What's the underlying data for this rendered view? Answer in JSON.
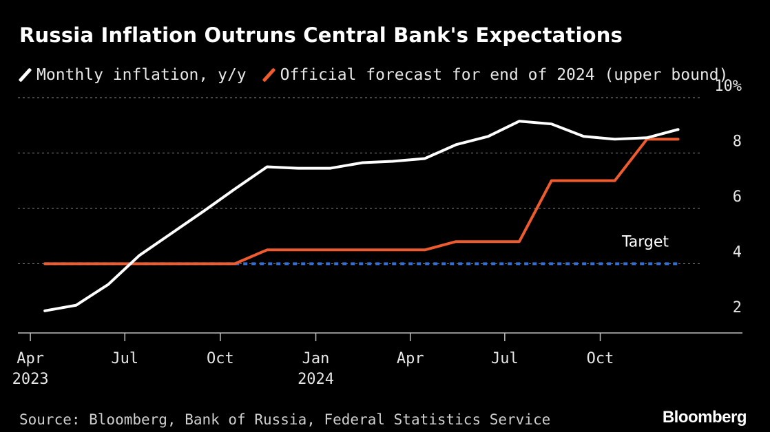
{
  "title": "Russia Inflation Outruns Central Bank's Expectations",
  "legend": [
    {
      "label": "Monthly inflation, y/y",
      "color": "#ffffff"
    },
    {
      "label": "Official forecast for end of 2024 (upper bound)",
      "color": "#ee5b2e"
    }
  ],
  "source": "Source: Bloomberg, Bank of Russia, Federal Statistics Service",
  "brand": "Bloomberg",
  "chart_data": {
    "type": "line",
    "x": [
      "2023-04",
      "2023-05",
      "2023-06",
      "2023-07",
      "2023-08",
      "2023-09",
      "2023-10",
      "2023-11",
      "2023-12",
      "2024-01",
      "2024-02",
      "2024-03",
      "2024-04",
      "2024-05",
      "2024-06",
      "2024-07",
      "2024-08",
      "2024-09",
      "2024-10",
      "2024-11",
      "2024-12"
    ],
    "series": [
      {
        "name": "Monthly inflation, y/y",
        "color": "#ffffff",
        "step": false,
        "values": [
          2.3,
          2.5,
          3.25,
          4.3,
          5.1,
          5.9,
          6.7,
          7.5,
          7.45,
          7.45,
          7.65,
          7.7,
          7.8,
          8.3,
          8.6,
          9.15,
          9.05,
          8.6,
          8.5,
          8.55,
          8.85
        ]
      },
      {
        "name": "Official forecast for end of 2024 (upper bound)",
        "color": "#ee5b2e",
        "step": true,
        "values": [
          4.0,
          4.0,
          4.0,
          4.0,
          4.0,
          4.0,
          4.0,
          4.5,
          4.5,
          4.5,
          4.5,
          4.5,
          4.5,
          4.8,
          4.8,
          4.8,
          7.0,
          7.0,
          7.0,
          8.5,
          8.5
        ]
      }
    ],
    "reference_lines": [
      {
        "label": "Target",
        "value": 4,
        "color": "#2f6fd6",
        "style": "dotted"
      }
    ],
    "ylim": [
      1.5,
      9.8
    ],
    "xlim": [
      "2023-03-20",
      "2025-02-15"
    ],
    "yticks": [
      {
        "value": 2,
        "label": "2"
      },
      {
        "value": 4,
        "label": "4"
      },
      {
        "value": 6,
        "label": "6"
      },
      {
        "value": 8,
        "label": "8"
      },
      {
        "value": 10,
        "label": "10%"
      }
    ],
    "gridlines_at": [
      4,
      6,
      8,
      10
    ],
    "xticks": [
      {
        "date": "2023-04-01",
        "line1": "Apr",
        "line2": "2023"
      },
      {
        "date": "2023-07-01",
        "line1": "Jul",
        "line2": ""
      },
      {
        "date": "2023-10-01",
        "line1": "Oct",
        "line2": ""
      },
      {
        "date": "2024-01-01",
        "line1": "Jan",
        "line2": "2024"
      },
      {
        "date": "2024-04-01",
        "line1": "Apr",
        "line2": ""
      },
      {
        "date": "2024-07-01",
        "line1": "Jul",
        "line2": ""
      },
      {
        "date": "2024-10-01",
        "line1": "Oct",
        "line2": ""
      }
    ],
    "grid": true,
    "legend_position": "top-left"
  }
}
